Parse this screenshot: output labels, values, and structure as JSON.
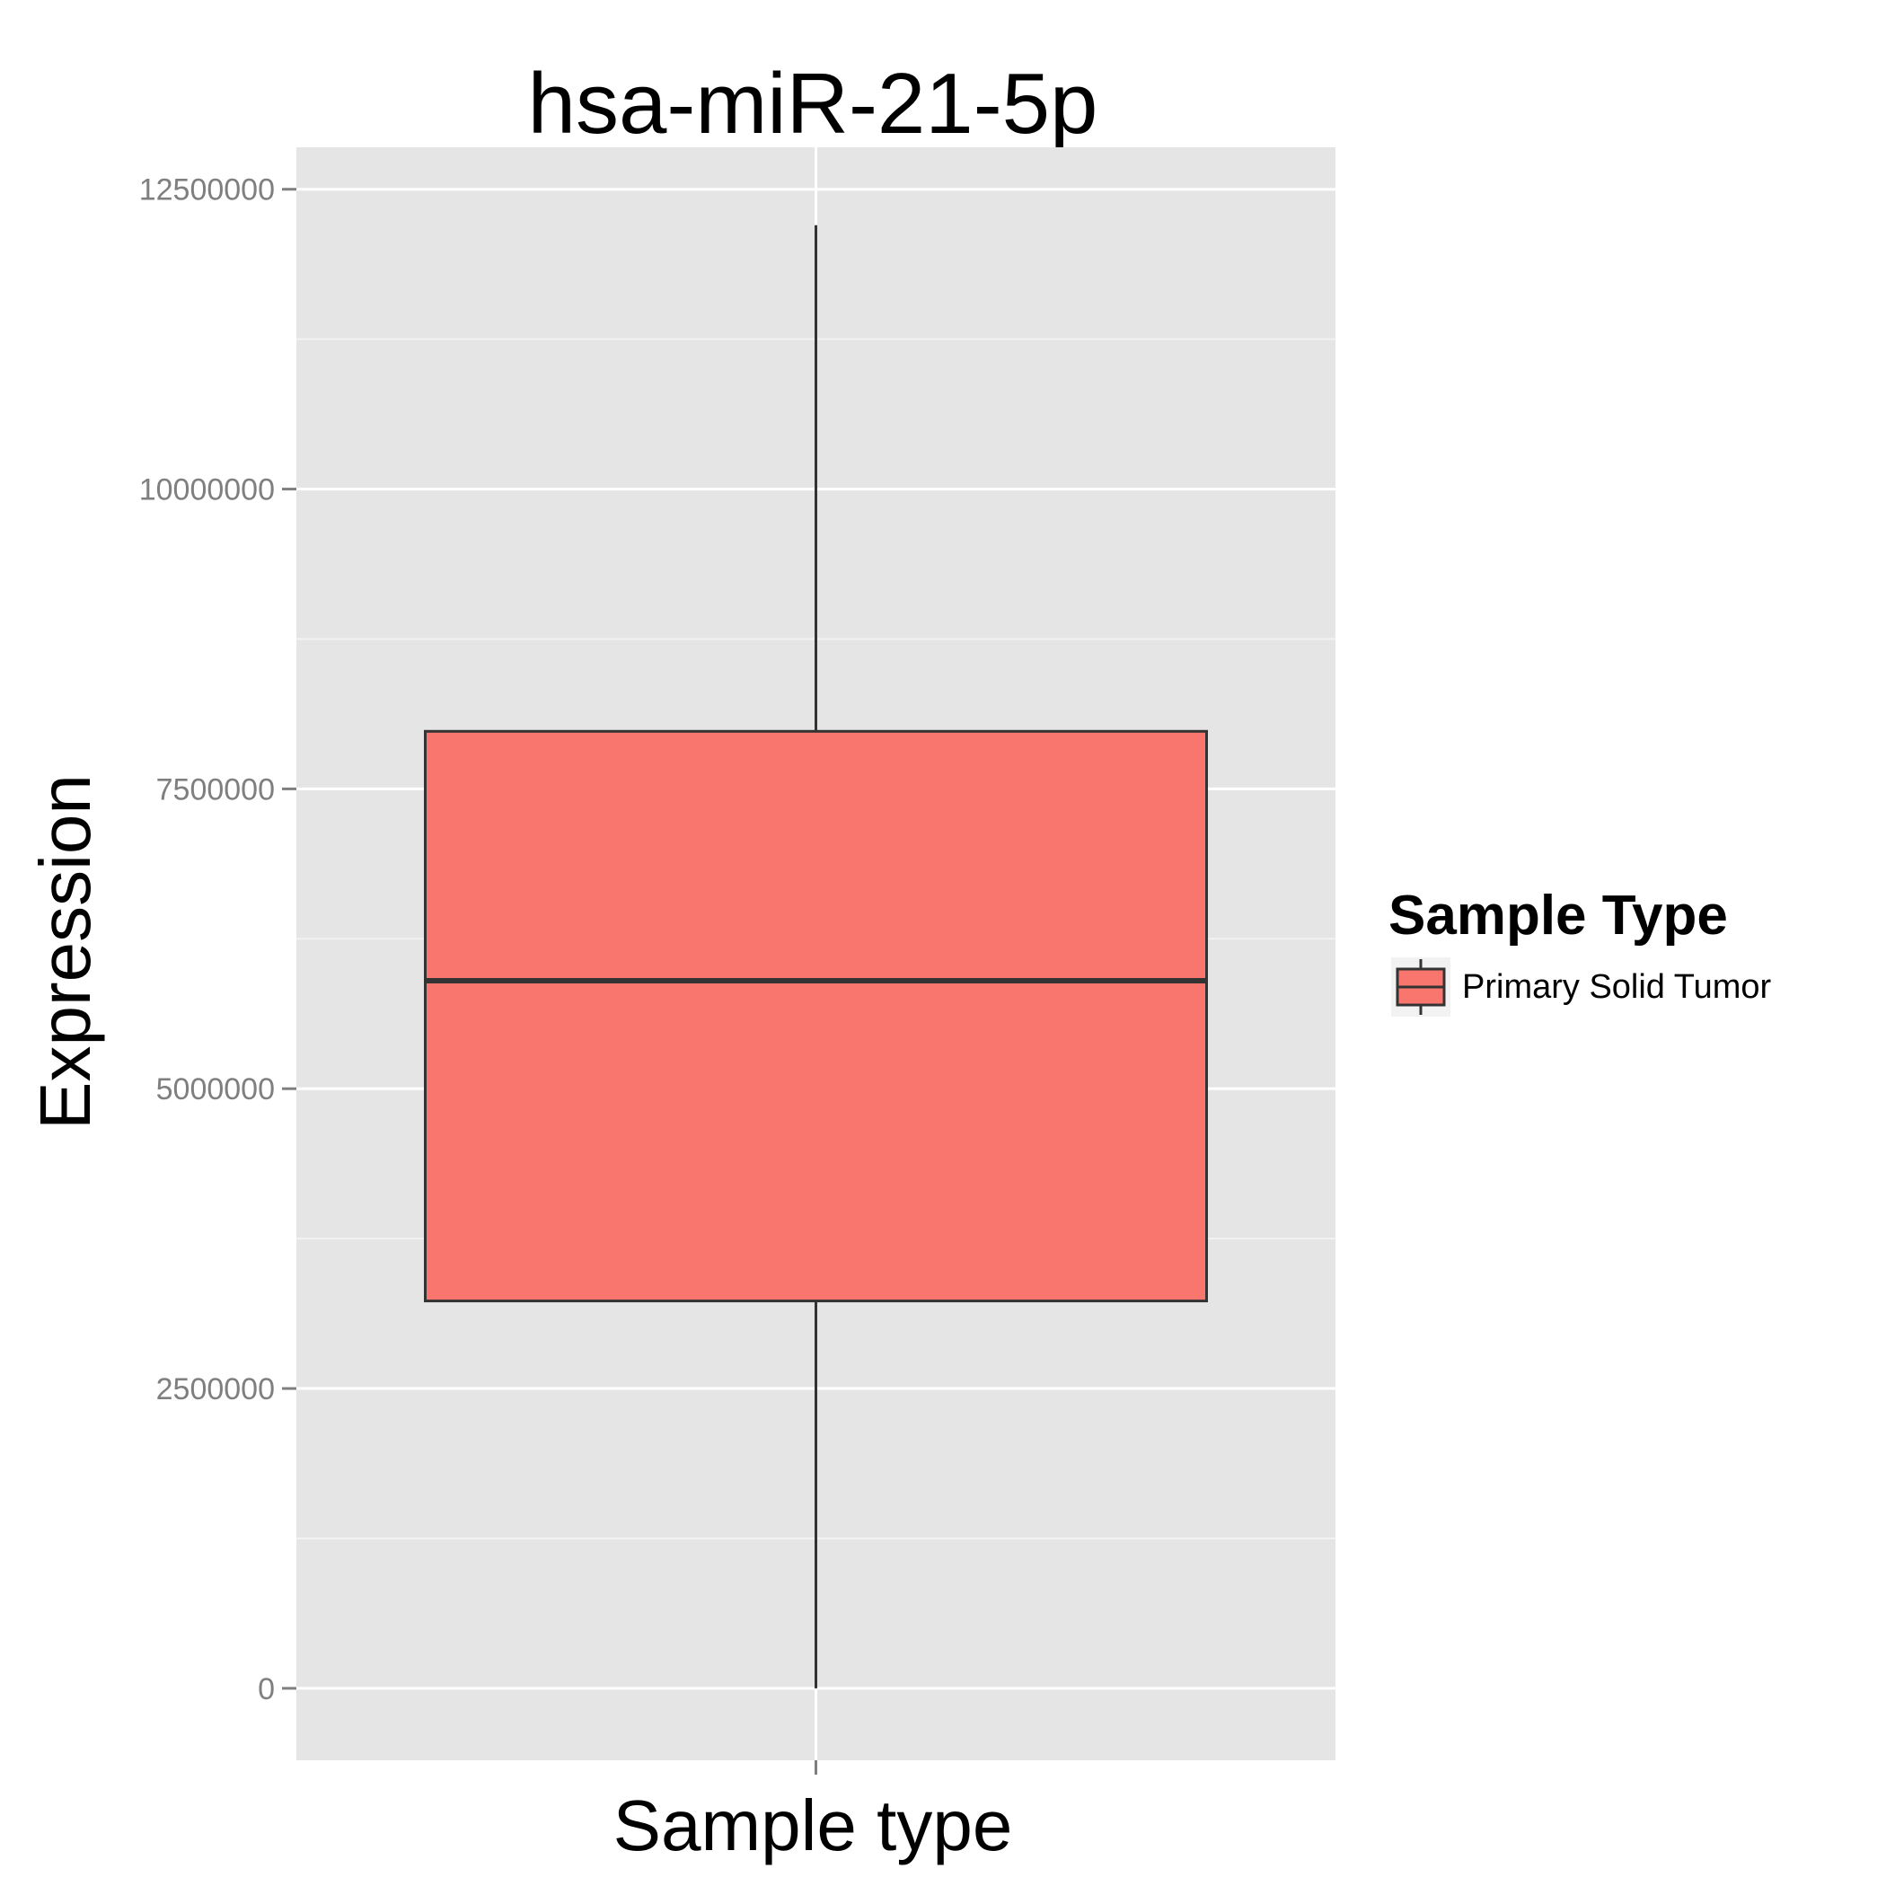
{
  "chart_data": {
    "type": "boxplot",
    "title": "hsa-miR-21-5p",
    "xlabel": "Sample type",
    "ylabel": "Expression",
    "ylim": [
      -600000,
      12850000
    ],
    "yticks": [
      0,
      2500000,
      5000000,
      7500000,
      10000000,
      12500000
    ],
    "ytick_labels": [
      "0",
      "2500000",
      "5000000",
      "7500000",
      "10000000",
      "12500000"
    ],
    "grid": true,
    "legend": {
      "title": "Sample Type",
      "position": "right",
      "entries": [
        "Primary Solid Tumor"
      ]
    },
    "series": [
      {
        "name": "Primary Solid Tumor",
        "color": "#F8766D",
        "min": 0,
        "q1": 3230000,
        "median": 5900000,
        "q3": 7980000,
        "max": 12200000
      }
    ]
  },
  "colors": {
    "panel_bg": "#E5E5E5",
    "grid_major": "#FFFFFF",
    "box_fill": "#F8766D",
    "box_stroke": "#333333"
  }
}
